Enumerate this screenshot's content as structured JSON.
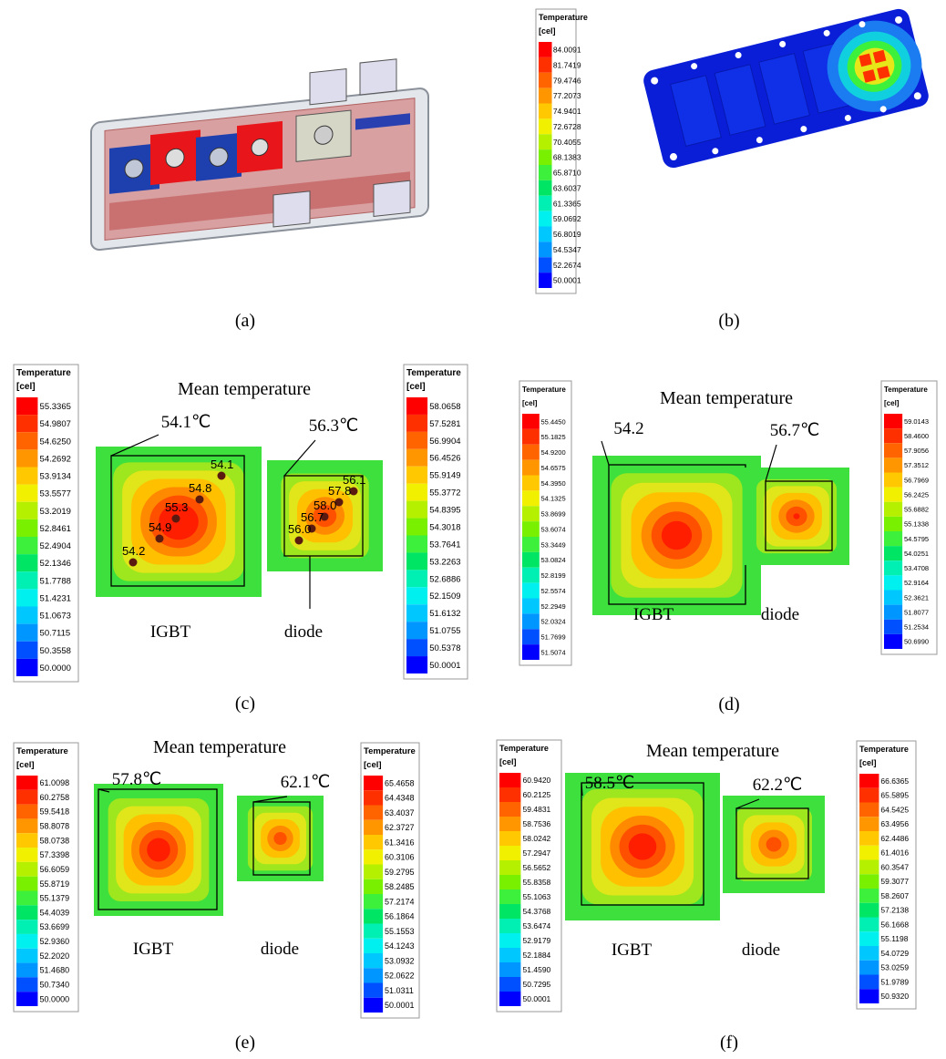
{
  "figure": {
    "panel_a": {
      "label": "(a)"
    },
    "panel_b": {
      "label": "(b)",
      "legends": [
        {
          "title": "Temperature",
          "unit": "[cel]",
          "values": [
            "84.0091",
            "81.7419",
            "79.4746",
            "77.2073",
            "74.9401",
            "72.6728",
            "70.4055",
            "68.1383",
            "65.8710",
            "63.6037",
            "61.3365",
            "59.0692",
            "56.8019",
            "54.5347",
            "52.2674",
            "50.0001"
          ]
        }
      ]
    },
    "panel_c": {
      "label": "(c)",
      "heading": "Mean temperature",
      "igbt": {
        "name": "IGBT",
        "mean": "54.1℃",
        "points": [
          "54.1",
          "54.8",
          "55.3",
          "54.9",
          "54.2"
        ]
      },
      "diode": {
        "name": "diode",
        "mean": "56.3℃",
        "points": [
          "56.1",
          "57.8",
          "58.0",
          "56.7",
          "56.0"
        ]
      },
      "legends": [
        {
          "title": "Temperature",
          "unit": "[cel]",
          "values": [
            "55.3365",
            "54.9807",
            "54.6250",
            "54.2692",
            "53.9134",
            "53.5577",
            "53.2019",
            "52.8461",
            "52.4904",
            "52.1346",
            "51.7788",
            "51.4231",
            "51.0673",
            "50.7115",
            "50.3558",
            "50.0000"
          ]
        },
        {
          "title": "Temperature",
          "unit": "[cel]",
          "values": [
            "58.0658",
            "57.5281",
            "56.9904",
            "56.4526",
            "55.9149",
            "55.3772",
            "54.8395",
            "54.3018",
            "53.7641",
            "53.2263",
            "52.6886",
            "52.1509",
            "51.6132",
            "51.0755",
            "50.5378",
            "50.0001"
          ]
        }
      ]
    },
    "panel_d": {
      "label": "(d)",
      "heading": "Mean temperature",
      "igbt": {
        "name": "IGBT",
        "mean": "54.2"
      },
      "diode": {
        "name": "diode",
        "mean": "56.7℃"
      },
      "legends": [
        {
          "title": "Temperature",
          "unit": "[cel]",
          "values": [
            "55.4450",
            "55.1825",
            "54.9200",
            "54.6575",
            "54.3950",
            "54.1325",
            "53.8699",
            "53.6074",
            "53.3449",
            "53.0824",
            "52.8199",
            "52.5574",
            "52.2949",
            "52.0324",
            "51.7699",
            "51.5074"
          ]
        },
        {
          "title": "Temperature",
          "unit": "[cel]",
          "values": [
            "59.0143",
            "58.4600",
            "57.9056",
            "57.3512",
            "56.7969",
            "56.2425",
            "55.6882",
            "55.1338",
            "54.5795",
            "54.0251",
            "53.4708",
            "52.9164",
            "52.3621",
            "51.8077",
            "51.2534",
            "50.6990"
          ]
        }
      ]
    },
    "panel_e": {
      "label": "(e)",
      "heading": "Mean temperature",
      "igbt": {
        "name": "IGBT",
        "mean": "57.8℃"
      },
      "diode": {
        "name": "diode",
        "mean": "62.1℃"
      },
      "legends": [
        {
          "title": "Temperature",
          "unit": "[cel]",
          "values": [
            "61.0098",
            "60.2758",
            "59.5418",
            "58.8078",
            "58.0738",
            "57.3398",
            "56.6059",
            "55.8719",
            "55.1379",
            "54.4039",
            "53.6699",
            "52.9360",
            "52.2020",
            "51.4680",
            "50.7340",
            "50.0000"
          ]
        },
        {
          "title": "Temperature",
          "unit": "[cel]",
          "values": [
            "65.4658",
            "64.4348",
            "63.4037",
            "62.3727",
            "61.3416",
            "60.3106",
            "59.2795",
            "58.2485",
            "57.2174",
            "56.1864",
            "55.1553",
            "54.1243",
            "53.0932",
            "52.0622",
            "51.0311",
            "50.0001"
          ]
        }
      ]
    },
    "panel_f": {
      "label": "(f)",
      "heading": "Mean temperature",
      "igbt": {
        "name": "IGBT",
        "mean": "58.5℃"
      },
      "diode": {
        "name": "diode",
        "mean": "62.2℃"
      },
      "legends": [
        {
          "title": "Temperature",
          "unit": "[cel]",
          "values": [
            "60.9420",
            "60.2125",
            "59.4831",
            "58.7536",
            "58.0242",
            "57.2947",
            "56.5652",
            "55.8358",
            "55.1063",
            "54.3768",
            "53.6474",
            "52.9179",
            "52.1884",
            "51.4590",
            "50.7295",
            "50.0001"
          ]
        },
        {
          "title": "Temperature",
          "unit": "[cel]",
          "values": [
            "66.6365",
            "65.5895",
            "64.5425",
            "63.4956",
            "62.4486",
            "61.4016",
            "60.3547",
            "59.3077",
            "58.2607",
            "57.2138",
            "56.1668",
            "55.1198",
            "54.0729",
            "53.0259",
            "51.9789",
            "50.9320"
          ]
        }
      ]
    }
  }
}
